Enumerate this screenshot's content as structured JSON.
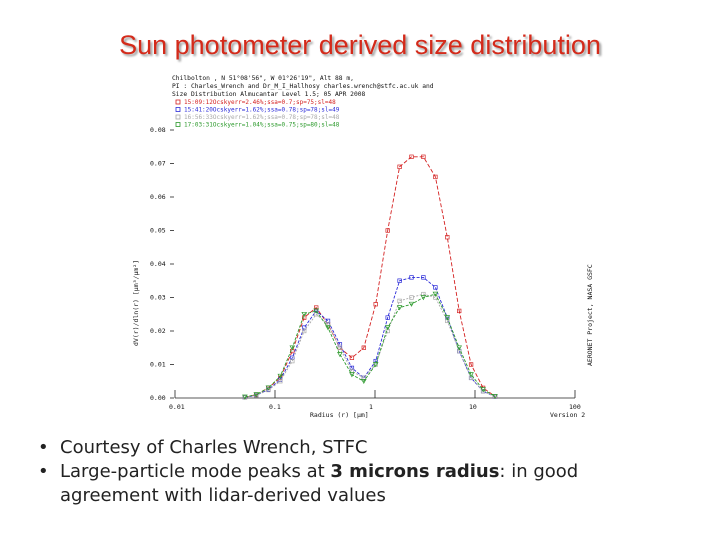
{
  "slide": {
    "title": "Sun photometer derived size distribution",
    "bullets": [
      {
        "text": "Courtesy of Charles Wrench, STFC"
      },
      {
        "pre": "Large-particle mode peaks at ",
        "bold": "3 microns radius",
        "post": ": in good",
        "line2": "agreement with lidar-derived values"
      }
    ]
  },
  "chart_data": {
    "type": "line",
    "header_lines": [
      "Chilbolton , N 51°08'56\", W 01°26'19\", Alt 88 m,",
      "PI : Charles_Wrench and Dr_M_I_Hallhosy charles.wrench@stfc.ac.uk and",
      "Size Distribution Almucantar Level 1.5; 05 APR 2008"
    ],
    "ylabel": "dV(r)/dln(r) [µm³/µm²]",
    "xlabel": "Radius (r) [µm]",
    "right_label": "AERONET Project, NASA GSFC",
    "version": "Version 2",
    "xscale": "log",
    "xlim": [
      0.01,
      100
    ],
    "ylim": [
      0.0,
      0.08
    ],
    "y_ticks": [
      "0.00",
      "0.01",
      "0.02",
      "0.03",
      "0.04",
      "0.05",
      "0.06",
      "0.07",
      "0.08"
    ],
    "x_ticks": [
      "0.01",
      "0.1",
      "1",
      "10",
      "100"
    ],
    "x": [
      0.05,
      0.065,
      0.086,
      0.113,
      0.149,
      0.196,
      0.258,
      0.339,
      0.446,
      0.588,
      0.773,
      1.017,
      1.339,
      1.762,
      2.318,
      3.051,
      4.015,
      5.283,
      6.952,
      9.149,
      12.04,
      15.85
    ],
    "series": [
      {
        "name": "15:09:12Ocskyerr=2.46%;ssa=0.7;sp=75;sl=48",
        "color": "#d42020",
        "values": [
          0.0002,
          0.001,
          0.003,
          0.006,
          0.014,
          0.024,
          0.027,
          0.022,
          0.015,
          0.012,
          0.015,
          0.028,
          0.05,
          0.069,
          0.072,
          0.072,
          0.066,
          0.048,
          0.026,
          0.01,
          0.003,
          0.0005
        ]
      },
      {
        "name": "15:41:20Ocskyerr=1.62%;ssa=0.78;sp=78;sl=49",
        "color": "#2a2ad8",
        "values": [
          0.0002,
          0.0008,
          0.0025,
          0.0055,
          0.012,
          0.021,
          0.026,
          0.023,
          0.016,
          0.009,
          0.006,
          0.011,
          0.024,
          0.035,
          0.036,
          0.036,
          0.033,
          0.024,
          0.014,
          0.006,
          0.002,
          0.0004
        ]
      },
      {
        "name": "16:56:33Ocskyerr=1.62%;ssa=0.78;sp=78;sl=48",
        "color": "#a8a8a8",
        "values": [
          0.0002,
          0.0008,
          0.0024,
          0.005,
          0.011,
          0.02,
          0.025,
          0.022,
          0.015,
          0.008,
          0.006,
          0.01,
          0.02,
          0.029,
          0.03,
          0.031,
          0.03,
          0.023,
          0.014,
          0.006,
          0.002,
          0.0004
        ]
      },
      {
        "name": "17:03:31Ocskyerr=1.04%;ssa=0.75;sp=80;sl=48",
        "color": "#2c9a2c",
        "values": [
          0.0003,
          0.001,
          0.003,
          0.0065,
          0.015,
          0.025,
          0.026,
          0.021,
          0.013,
          0.007,
          0.005,
          0.01,
          0.021,
          0.027,
          0.028,
          0.03,
          0.031,
          0.024,
          0.015,
          0.007,
          0.0025,
          0.0005
        ]
      }
    ]
  }
}
